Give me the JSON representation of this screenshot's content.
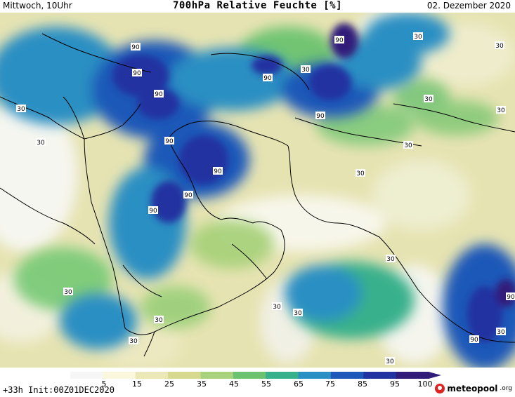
{
  "header": {
    "left": "Mittwoch, 10Uhr",
    "title": "700hPa Relative Feuchte [%]",
    "right": "02. Dezember 2020"
  },
  "footer": {
    "run": "+33h Init:00Z01DEC2020",
    "brand_main": "meteopool",
    "brand_suffix": ".org"
  },
  "legend": {
    "ticks": [
      "5",
      "15",
      "25",
      "35",
      "45",
      "55",
      "65",
      "75",
      "85",
      "95",
      "100"
    ],
    "colors": [
      "#f6f6f6",
      "#fbf7dc",
      "#ebe7b6",
      "#d6d98e",
      "#a9d27c",
      "#6cc36f",
      "#37b08b",
      "#2a8fc3",
      "#1d59b8",
      "#2232a0",
      "#321c7a"
    ]
  },
  "map": {
    "contour_labels": [
      "90",
      "90",
      "90",
      "90",
      "90",
      "90",
      "90",
      "90",
      "90",
      "90",
      "90",
      "90",
      "30",
      "30",
      "30",
      "30",
      "30",
      "30",
      "30",
      "30",
      "30",
      "30",
      "30",
      "30",
      "30",
      "30",
      "30",
      "30",
      "30"
    ]
  }
}
